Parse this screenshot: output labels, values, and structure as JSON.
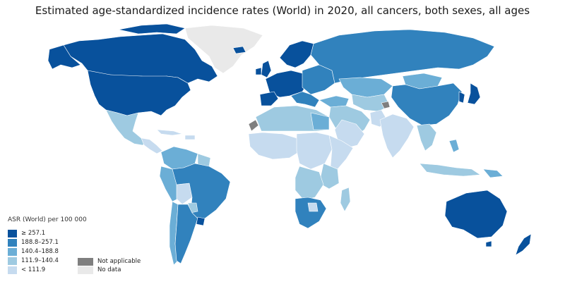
{
  "title": "Estimated age-standardized incidence rates (World) in 2020, all cancers, both sexes, all ages",
  "legend": {
    "title": "ASR (World) per 100 000",
    "classes": [
      {
        "label": "≥ 257.1",
        "color": "#08519c"
      },
      {
        "label": "188.8–257.1",
        "color": "#3182bd"
      },
      {
        "label": "140.4–188.8",
        "color": "#6baed6"
      },
      {
        "label": "111.9–140.4",
        "color": "#9ecae1"
      },
      {
        "label": "< 111.9",
        "color": "#c6dbef"
      }
    ],
    "extra": [
      {
        "label": "Not applicable",
        "color": "#7f7f7f"
      },
      {
        "label": "No data",
        "color": "#e9e9e9"
      }
    ]
  },
  "colors": {
    "top": "#08519c",
    "high": "#3182bd",
    "mid": "#6baed6",
    "low": "#9ecae1",
    "lowest": "#c6dbef",
    "na": "#7f7f7f",
    "nodata": "#e9e9e9"
  }
}
